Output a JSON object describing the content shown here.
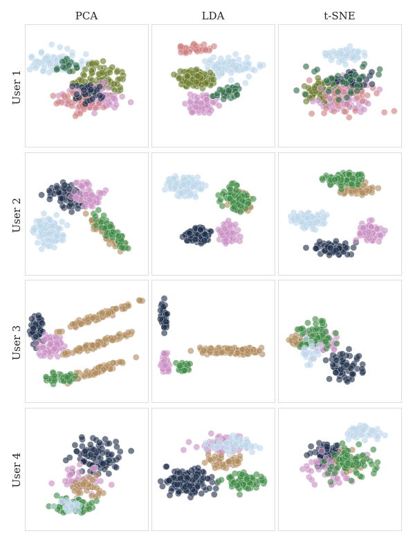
{
  "columns": [
    "PCA",
    "LDA",
    "t-SNE"
  ],
  "rows": [
    "User 1",
    "User 2",
    "User 3",
    "User 4"
  ],
  "colors": {
    "light_blue": "#bdd7ea",
    "olive": "#6b7a2a",
    "pink": "#c98fc3",
    "red": "#cf7f7f",
    "dark_green": "#2e6a48",
    "navy": "#1f2e4a",
    "brown": "#b08a5c",
    "green": "#3f8a45",
    "panel_border": "#dddddd"
  },
  "chart_data": {
    "type": "scatter",
    "grid": false,
    "axes_ticks": false,
    "layout": "4 rows x 3 columns of scatter panels",
    "panels": [
      {
        "row": "User 1",
        "col": "PCA",
        "classes": [
          "light_blue",
          "olive",
          "pink",
          "red",
          "navy",
          "dark_green"
        ]
      },
      {
        "row": "User 1",
        "col": "LDA",
        "classes": [
          "light_blue",
          "olive",
          "pink",
          "red",
          "dark_green"
        ]
      },
      {
        "row": "User 1",
        "col": "t-SNE",
        "classes": [
          "light_blue",
          "olive",
          "pink",
          "red",
          "navy",
          "dark_green"
        ]
      },
      {
        "row": "User 2",
        "col": "PCA",
        "classes": [
          "light_blue",
          "navy",
          "pink",
          "brown",
          "green"
        ]
      },
      {
        "row": "User 2",
        "col": "LDA",
        "classes": [
          "light_blue",
          "navy",
          "pink",
          "brown",
          "green"
        ]
      },
      {
        "row": "User 2",
        "col": "t-SNE",
        "classes": [
          "light_blue",
          "navy",
          "pink",
          "brown",
          "green"
        ]
      },
      {
        "row": "User 3",
        "col": "PCA",
        "classes": [
          "navy",
          "pink",
          "brown",
          "green"
        ]
      },
      {
        "row": "User 3",
        "col": "LDA",
        "classes": [
          "navy",
          "pink",
          "brown",
          "green"
        ]
      },
      {
        "row": "User 3",
        "col": "t-SNE",
        "classes": [
          "navy",
          "pink",
          "brown",
          "green",
          "light_blue"
        ]
      },
      {
        "row": "User 4",
        "col": "PCA",
        "classes": [
          "navy",
          "pink",
          "brown",
          "green",
          "light_blue"
        ]
      },
      {
        "row": "User 4",
        "col": "LDA",
        "classes": [
          "navy",
          "pink",
          "brown",
          "green",
          "light_blue"
        ]
      },
      {
        "row": "User 4",
        "col": "t-SNE",
        "classes": [
          "navy",
          "pink",
          "brown",
          "green",
          "light_blue"
        ]
      }
    ]
  }
}
